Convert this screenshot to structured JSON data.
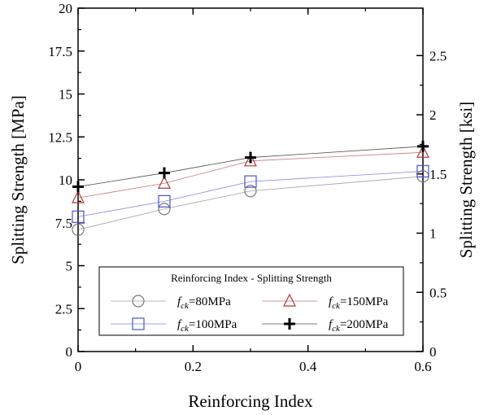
{
  "chart_data": {
    "type": "line",
    "title": "",
    "xlabel": "Reinforcing Index",
    "ylabel": "Splitting Strength [MPa]",
    "y2label": "Splitting Strength [ksi]",
    "xlim": [
      0,
      0.6
    ],
    "ylim": [
      0,
      20
    ],
    "y2lim": [
      0,
      2.9008
    ],
    "x_ticks": [
      0,
      0.2,
      0.4,
      0.6
    ],
    "x_tick_labels": [
      "0",
      "0.2",
      "0.4",
      "0.6"
    ],
    "y_ticks": [
      0,
      2.5,
      5,
      7.5,
      10,
      12.5,
      15,
      17.5,
      20
    ],
    "y_tick_labels": [
      "0",
      "2.5",
      "5",
      "7.5",
      "10",
      "12.5",
      "15",
      "17.5",
      "20"
    ],
    "y2_ticks": [
      0,
      0.5,
      1,
      1.5,
      2,
      2.5
    ],
    "y2_tick_labels": [
      "0",
      "0.5",
      "1",
      "1.5",
      "2",
      "2.5"
    ],
    "grid": false,
    "x": [
      0,
      0.15,
      0.3,
      0.6
    ],
    "series": [
      {
        "name": "fck=80MPa",
        "label_main": "f",
        "label_sub": "ck",
        "label_rest": "=80MPa",
        "marker": "circle",
        "color": "#7a7a7a",
        "values": [
          7.1,
          8.3,
          9.35,
          10.2
        ]
      },
      {
        "name": "fck=100MPa",
        "label_main": "f",
        "label_sub": "ck",
        "label_rest": "=100MPa",
        "marker": "square",
        "color": "#4a55cc",
        "values": [
          7.85,
          8.75,
          9.9,
          10.5
        ]
      },
      {
        "name": "fck=150MPa",
        "label_main": "f",
        "label_sub": "ck",
        "label_rest": "=150MPa",
        "marker": "triangle",
        "color": "#b03a3a",
        "values": [
          8.95,
          9.8,
          11.1,
          11.6
        ]
      },
      {
        "name": "fck=200MPa",
        "label_main": "f",
        "label_sub": "ck",
        "label_rest": "=200MPa",
        "marker": "plus",
        "color": "#000000",
        "values": [
          9.6,
          10.4,
          11.3,
          11.95
        ]
      }
    ],
    "legend": {
      "title": "Reinforcing Index - Splitting Strength",
      "position": "bottom-center"
    }
  }
}
